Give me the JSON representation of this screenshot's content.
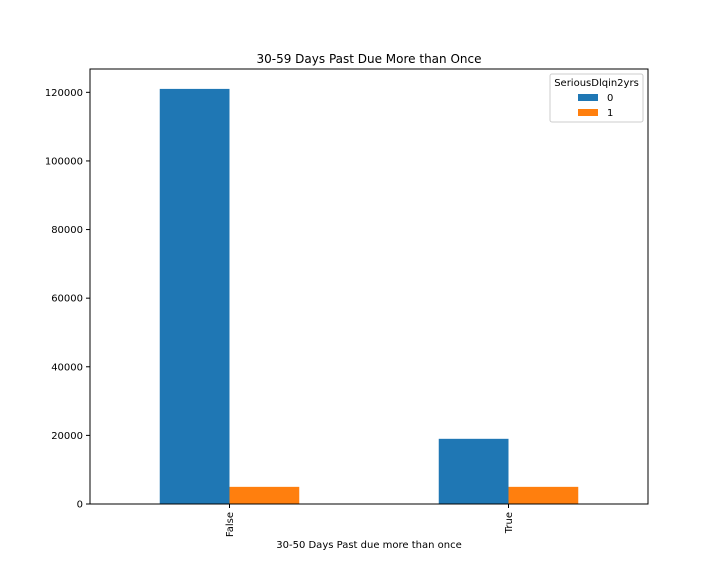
{
  "chart_data": {
    "type": "bar",
    "title": "30-59 Days Past Due More than Once",
    "xlabel": "30-50 Days Past due more than once",
    "ylabel": "",
    "categories": [
      "False",
      "True"
    ],
    "series": [
      {
        "name": "0",
        "values": [
          121000,
          19000
        ],
        "color": "#1f77b4"
      },
      {
        "name": "1",
        "values": [
          5000,
          5000
        ],
        "color": "#ff7f0e"
      }
    ],
    "ylim": [
      0,
      126800
    ],
    "yticks": [
      0,
      20000,
      40000,
      60000,
      80000,
      100000,
      120000
    ],
    "ytick_labels": [
      "0",
      "20000",
      "40000",
      "60000",
      "80000",
      "100000",
      "120000"
    ],
    "legend": {
      "title": "SeriousDlqin2yrs",
      "placement": "top-right"
    },
    "grid": false
  }
}
